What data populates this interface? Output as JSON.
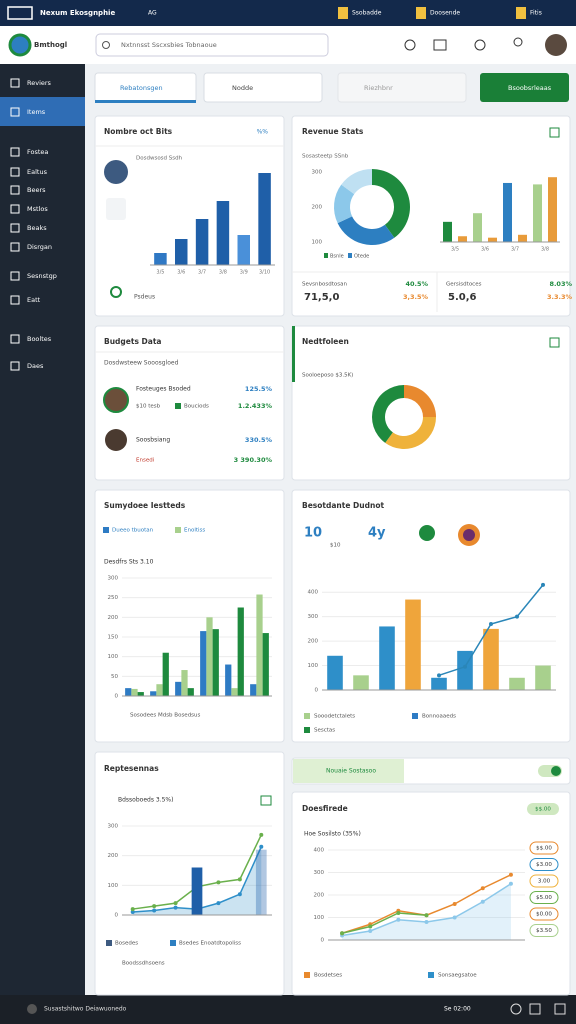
{
  "topbar": {
    "title": "Nexum Ekosgnphie",
    "badge": "AG",
    "links": [
      "Ssobadde",
      "Doosende",
      "Fitis"
    ]
  },
  "header": {
    "brand": "Bmthogl",
    "search": "Nxtnnsst Sscxsbies Tobnaoue"
  },
  "sidebar": {
    "items": [
      "Reviers",
      "Items",
      "Fostea",
      "Ealtus",
      "Beers",
      "Mstlos",
      "Beaks",
      "Disrgan",
      "Sesnstgp",
      "Eatt",
      "Booltes",
      "Daes"
    ],
    "active": 1
  },
  "tabs": [
    "Rebatonsgen",
    "Nodde",
    "Riezhbnr",
    "Bsoobsrleaas"
  ],
  "tickets": {
    "title": "Nombre oct Bits",
    "badge": "%%",
    "legend": "Dosdwsosd Ssdh",
    "footer": "Psdeus",
    "chart": {
      "categories": [
        "3/5",
        "3/6",
        "3/7",
        "3/8",
        "3/9",
        "3/10"
      ],
      "values": [
        12,
        26,
        46,
        64,
        30,
        92
      ],
      "ylim": [
        0,
        100
      ],
      "colors": [
        "#2f78c4",
        "#1f5fa8",
        "#1f5fa8",
        "#1f5fa8",
        "#4a90d9",
        "#1f5fa8"
      ]
    }
  },
  "revenue": {
    "title": "Revenue Stats",
    "subtitle": "Sosasteetp SSnb",
    "scale": [
      "300",
      "200",
      "100"
    ],
    "legend": [
      "Bsnle",
      "Otede"
    ],
    "donut": {
      "values": [
        40,
        28,
        17,
        15
      ],
      "colors": [
        "#1e8a3e",
        "#2d7fc1",
        "#8cc8ea",
        "#bfe0f2"
      ]
    },
    "bars": {
      "categories": [
        "3/5",
        "3/6",
        "3/7",
        "3/8"
      ],
      "values": [
        28,
        8,
        40,
        6,
        82,
        10,
        80,
        90
      ],
      "ylim": [
        0,
        100
      ],
      "colors": [
        "#1e8a3e",
        "#e89b3a",
        "#a8d08d",
        "#e89b3a",
        "#2d7fc1",
        "#e89b3a",
        "#a8d08d",
        "#e89b3a"
      ]
    },
    "stats": [
      {
        "label": "Sevsnbosdtosan",
        "value": "71,5,0",
        "change": "40.5%",
        "change2": "3,3.5%"
      },
      {
        "label": "Gersisdtoces",
        "value": "5.0,6",
        "change": "8.03%",
        "change2": "3.3.3%"
      }
    ]
  },
  "budget": {
    "title": "Budgets Data",
    "subtitle": "Dosdwsteew Sooosgloed",
    "items": [
      {
        "name": "Fosteuges Bsoded",
        "sub": "$10 tesb",
        "tag": "Bouciods",
        "amount": "125.5%",
        "amount2": "1.2.433%"
      },
      {
        "name": "Soosbsiang",
        "sub": "Ensedi",
        "amount": "330.5%",
        "amount2": "3 390.30%"
      }
    ]
  },
  "portfolio": {
    "title": "Nedtfoleen",
    "subtitle": "Sooloeposo $3.5K)",
    "donut": {
      "values": [
        25,
        35,
        40
      ],
      "colors": [
        "#e8892e",
        "#efb23b",
        "#1e8a3e"
      ]
    }
  },
  "grouped": {
    "title": "Sumydoee Iestteds",
    "subtitle": "Desdfrs Sts 3.10",
    "footer": "Sosodees Mdsb Bosedsus",
    "chart": {
      "ylim": [
        0,
        300
      ],
      "yticks": [
        0,
        50,
        100,
        150,
        200,
        250,
        300
      ],
      "series": [
        {
          "name": "Dueeo tbuotan",
          "color": "#2e7bc4",
          "values": [
            20,
            12,
            36,
            165,
            80,
            30
          ]
        },
        {
          "name": "Enoltiss",
          "color": "#a8d08d",
          "values": [
            18,
            30,
            66,
            200,
            20,
            258
          ]
        },
        {
          "color": "#1e8a3e",
          "values": [
            10,
            110,
            20,
            170,
            225,
            160
          ]
        }
      ]
    }
  },
  "mixed": {
    "title": "Besotdante Dudnot",
    "kpis": [
      "10",
      "$10",
      "4y"
    ],
    "legend": [
      {
        "label": "Sooodetctalets",
        "color": "#a8d08d"
      },
      {
        "label": "Bonnoaaeds",
        "color": "#2e7bc4"
      },
      {
        "label": "Sesctas",
        "color": "#1e8a3e"
      }
    ],
    "chart": {
      "ylim": [
        0,
        450
      ],
      "yticks": [
        0,
        100,
        200,
        300,
        400
      ],
      "values": [
        140,
        60,
        260,
        370,
        50,
        160,
        250,
        50,
        100
      ],
      "colors": [
        "#2e8fc9",
        "#a8d08d",
        "#2e8fc9",
        "#efa53b",
        "#2e8fc9",
        "#2e8fc9",
        "#efa53b",
        "#a8d08d",
        "#a8d08d"
      ],
      "line": {
        "color": "#2a86b8",
        "values": [
          null,
          null,
          null,
          null,
          60,
          95,
          270,
          300,
          430
        ]
      }
    }
  },
  "trend": {
    "title": "Reptesennas",
    "subtitle": "Bdssoboeds 3.5%)",
    "legend": [
      "Bosedes",
      "Bsedes Enoatdtopoliss"
    ],
    "footer": "Boodssdhsoens",
    "chart": {
      "ylim": [
        0,
        320
      ],
      "yticks": [
        0,
        100,
        200,
        300
      ],
      "bars": {
        "values": [
          null,
          null,
          null,
          160,
          null,
          null,
          220
        ],
        "color": "#1f5fa8"
      },
      "series": [
        {
          "color": "#2e8fc9",
          "values": [
            10,
            15,
            25,
            20,
            40,
            70,
            230
          ],
          "area": true
        },
        {
          "color": "#6ab04c",
          "values": [
            20,
            30,
            40,
            95,
            110,
            120,
            270
          ]
        }
      ]
    }
  },
  "filter": {
    "label": "Nouaie Sostasoo"
  },
  "forecast": {
    "title": "Doesfirede",
    "badge": "$$.00",
    "subtitle": "Hoe Sosilsto (35%)",
    "pills": [
      "$$.00",
      "$3.00",
      "3.00",
      "$5.00",
      "$0.00",
      "$3.50"
    ],
    "legend": [
      {
        "label": "Bosdetses",
        "color": "#e8892e"
      },
      {
        "label": "Sonsaegsatoe",
        "color": "#2e8fc9"
      }
    ],
    "chart": {
      "ylim": [
        0,
        400
      ],
      "yticks": [
        0,
        100,
        200,
        300,
        400
      ],
      "series": [
        {
          "color": "#8cc8ea",
          "values": [
            20,
            40,
            90,
            80,
            100,
            170,
            250
          ],
          "area": true
        },
        {
          "color": "#e8892e",
          "values": [
            30,
            70,
            130,
            110,
            160,
            230,
            290
          ]
        },
        {
          "color": "#6ab04c",
          "values": [
            30,
            60,
            120,
            110,
            null,
            null,
            null
          ]
        }
      ]
    }
  },
  "footer": {
    "text": "Susastshitwo Deiawuonedo",
    "time": "Se 02:00"
  }
}
